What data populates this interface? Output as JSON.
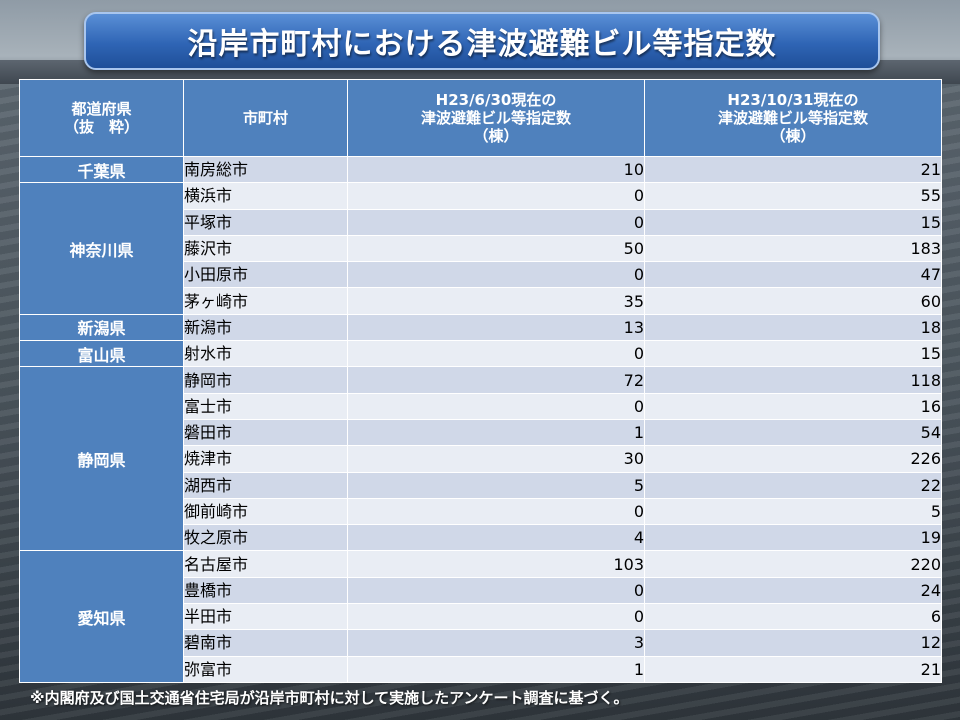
{
  "title": "沿岸市町村における津波避難ビル等指定数",
  "header": {
    "prefecture": "都道府県\n（抜　粋）",
    "municipality": "市町村",
    "col_2011_06": "H23/6/30現在の\n津波避難ビル等指定数\n（棟）",
    "col_2011_10": "H23/10/31現在の\n津波避難ビル等指定数\n（棟）"
  },
  "prefectures": [
    {
      "name": "千葉県",
      "rows": [
        {
          "city": "南房総市",
          "jun": "10",
          "oct": "21"
        }
      ]
    },
    {
      "name": "神奈川県",
      "rows": [
        {
          "city": "横浜市",
          "jun": "0",
          "oct": "55"
        },
        {
          "city": "平塚市",
          "jun": "0",
          "oct": "15"
        },
        {
          "city": "藤沢市",
          "jun": "50",
          "oct": "183"
        },
        {
          "city": "小田原市",
          "jun": "0",
          "oct": "47"
        },
        {
          "city": "茅ヶ崎市",
          "jun": "35",
          "oct": "60"
        }
      ]
    },
    {
      "name": "新潟県",
      "rows": [
        {
          "city": "新潟市",
          "jun": "13",
          "oct": "18"
        }
      ]
    },
    {
      "name": "富山県",
      "rows": [
        {
          "city": "射水市",
          "jun": "0",
          "oct": "15"
        }
      ]
    },
    {
      "name": "静岡県",
      "rows": [
        {
          "city": "静岡市",
          "jun": "72",
          "oct": "118"
        },
        {
          "city": "富士市",
          "jun": "0",
          "oct": "16"
        },
        {
          "city": "磐田市",
          "jun": "1",
          "oct": "54"
        },
        {
          "city": "焼津市",
          "jun": "30",
          "oct": "226"
        },
        {
          "city": "湖西市",
          "jun": "5",
          "oct": "22"
        },
        {
          "city": "御前崎市",
          "jun": "0",
          "oct": "5"
        },
        {
          "city": "牧之原市",
          "jun": "4",
          "oct": "19"
        }
      ]
    },
    {
      "name": "愛知県",
      "rows": [
        {
          "city": "名古屋市",
          "jun": "103",
          "oct": "220"
        },
        {
          "city": "豊橋市",
          "jun": "0",
          "oct": "24"
        },
        {
          "city": "半田市",
          "jun": "0",
          "oct": "6"
        },
        {
          "city": "碧南市",
          "jun": "3",
          "oct": "12"
        },
        {
          "city": "弥富市",
          "jun": "1",
          "oct": "21"
        }
      ]
    }
  ],
  "footnote": "※内閣府及び国土交通省住宅局が沿岸市町村に対して実施したアンケート調査に基づく。",
  "colors": {
    "header_blue": "#4f81bd",
    "row_odd": "#d0d8e8",
    "row_even": "#e9edf4",
    "title_blue": "#2f65b5"
  }
}
